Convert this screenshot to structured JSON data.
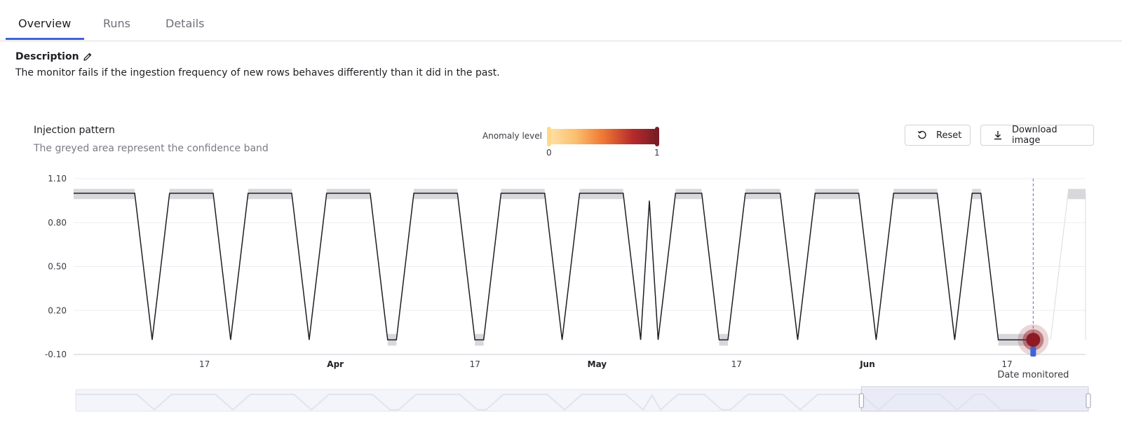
{
  "tabs": [
    {
      "label": "Overview",
      "active": true
    },
    {
      "label": "Runs",
      "active": false
    },
    {
      "label": "Details",
      "active": false
    }
  ],
  "description": {
    "title": "Description",
    "text": "The monitor fails if the ingestion frequency of new rows behaves differently than it did in the past."
  },
  "chart_header": {
    "title": "Injection pattern",
    "subtitle": "The greyed area represent the confidence band"
  },
  "anomaly_legend": {
    "label": "Anomaly level",
    "min_label": "0",
    "max_label": "1",
    "colors": [
      "#ffe2a8",
      "#ef7a35",
      "#7a1d26"
    ]
  },
  "buttons": {
    "reset_label": "Reset",
    "reset_icon": "rotate-ccw-icon",
    "download_label": "Download image",
    "download_icon": "download-icon"
  },
  "colors": {
    "accent": "#3f64d6",
    "line": "#1f1f24",
    "band": "#d8d8dc",
    "anomaly": "#8e1a24"
  },
  "chart_data": {
    "type": "line",
    "title": "Injection pattern",
    "subtitle": "The greyed area represent the confidence band",
    "xlabel": "Date monitored",
    "ylabel": "",
    "ylim": [
      -0.1,
      1.1
    ],
    "y_ticks": [
      "1.10",
      "0.80",
      "0.50",
      "0.20",
      "-0.10"
    ],
    "x_ticks": [
      "17",
      "Apr",
      "17",
      "May",
      "17",
      "Jun",
      "17"
    ],
    "x_range": [
      "2024-03-02",
      "2024-06-26"
    ],
    "grid": true,
    "series": [
      {
        "role": "value",
        "points": [
          [
            "2024-03-02",
            1
          ],
          [
            "2024-03-09",
            1
          ],
          [
            "2024-03-11",
            0
          ],
          [
            "2024-03-13",
            1
          ],
          [
            "2024-03-18",
            1
          ],
          [
            "2024-03-20",
            0
          ],
          [
            "2024-03-22",
            1
          ],
          [
            "2024-03-27",
            1
          ],
          [
            "2024-03-29",
            0
          ],
          [
            "2024-03-31",
            1
          ],
          [
            "2024-04-05",
            1
          ],
          [
            "2024-04-07",
            0
          ],
          [
            "2024-04-08",
            0
          ],
          [
            "2024-04-10",
            1
          ],
          [
            "2024-04-15",
            1
          ],
          [
            "2024-04-17",
            0
          ],
          [
            "2024-04-18",
            0
          ],
          [
            "2024-04-20",
            1
          ],
          [
            "2024-04-25",
            1
          ],
          [
            "2024-04-27",
            0
          ],
          [
            "2024-04-29",
            1
          ],
          [
            "2024-05-04",
            1
          ],
          [
            "2024-05-06",
            0
          ],
          [
            "2024-05-07",
            0.95
          ],
          [
            "2024-05-08",
            0
          ],
          [
            "2024-05-10",
            1
          ],
          [
            "2024-05-13",
            1
          ],
          [
            "2024-05-15",
            0
          ],
          [
            "2024-05-16",
            0
          ],
          [
            "2024-05-18",
            1
          ],
          [
            "2024-05-22",
            1
          ],
          [
            "2024-05-24",
            0
          ],
          [
            "2024-05-26",
            1
          ],
          [
            "2024-05-31",
            1
          ],
          [
            "2024-06-02",
            0
          ],
          [
            "2024-06-04",
            1
          ],
          [
            "2024-06-09",
            1
          ],
          [
            "2024-06-11",
            0
          ],
          [
            "2024-06-13",
            1
          ],
          [
            "2024-06-14",
            1
          ],
          [
            "2024-06-16",
            0
          ],
          [
            "2024-06-20",
            0
          ]
        ]
      }
    ],
    "confidence_band": {
      "upper": 1.03,
      "lower": 0.96,
      "low_upper": 0.04,
      "low_lower": -0.04
    },
    "anomaly": {
      "date": "2024-06-20",
      "value": 0,
      "label": "Date monitored"
    }
  }
}
